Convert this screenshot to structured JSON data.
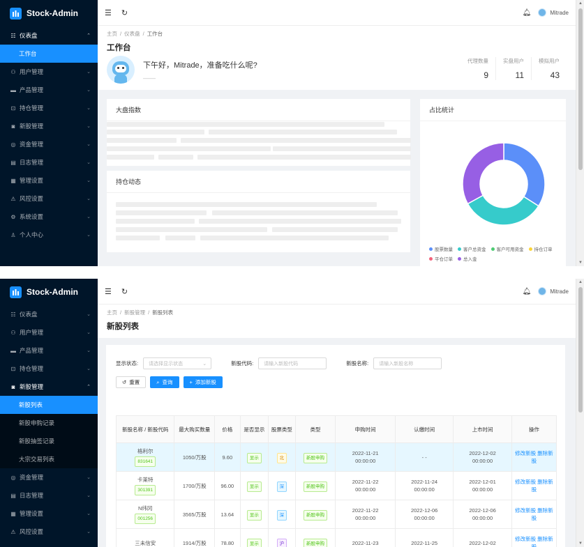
{
  "app": {
    "name": "Stock-Admin",
    "user": "Mitrade"
  },
  "shot1": {
    "menu": [
      {
        "icon": "☷",
        "label": "仪表盘",
        "open": true,
        "subs": [
          {
            "label": "工作台",
            "active": true
          }
        ]
      },
      {
        "icon": "⚇",
        "label": "用户管理"
      },
      {
        "icon": "▬",
        "label": "产品管理"
      },
      {
        "icon": "⊡",
        "label": "持仓管理"
      },
      {
        "icon": "◙",
        "label": "新股管理"
      },
      {
        "icon": "◎",
        "label": "资金管理"
      },
      {
        "icon": "▤",
        "label": "日志管理"
      },
      {
        "icon": "▦",
        "label": "管理设置"
      },
      {
        "icon": "⚠",
        "label": "风控设置"
      },
      {
        "icon": "⚙",
        "label": "系统设置"
      },
      {
        "icon": "♙",
        "label": "个人中心"
      }
    ],
    "breadcrumb": [
      "主页",
      "仪表盘",
      "工作台"
    ],
    "title": "工作台",
    "greeting": "下午好，Mitrade，准备吃什么呢?",
    "greeting_sub": "——",
    "stats": [
      {
        "label": "代理数量",
        "value": "9"
      },
      {
        "label": "实盘用户",
        "value": "11"
      },
      {
        "label": "模拟用户",
        "value": "43"
      }
    ],
    "card_market": "大盘指数",
    "card_position": "持仓动态",
    "card_ratio": "占比统计",
    "chart_data": {
      "type": "pie",
      "title": "",
      "categories": [
        "股票数量",
        "客户总资金",
        "客户可用资金",
        "持仓订单",
        "平仓订单",
        "总入金"
      ],
      "values": [
        34,
        33,
        0,
        0,
        0,
        33
      ],
      "colors": [
        "#5b8ff9",
        "#36cbcb",
        "#4ecb73",
        "#fbd437",
        "#f2637b",
        "#975fe4"
      ]
    }
  },
  "shot2": {
    "menu_before": [
      {
        "icon": "☷",
        "label": "仪表盘"
      },
      {
        "icon": "⚇",
        "label": "用户管理"
      },
      {
        "icon": "▬",
        "label": "产品管理"
      },
      {
        "icon": "⊡",
        "label": "持仓管理"
      }
    ],
    "menu_open": {
      "icon": "◙",
      "label": "新股管理"
    },
    "subs": [
      {
        "label": "新股列表",
        "active": true
      },
      {
        "label": "新股申购记录"
      },
      {
        "label": "新股抽签记录"
      },
      {
        "label": "大宗交易列表"
      }
    ],
    "menu_after": [
      {
        "icon": "◎",
        "label": "资金管理"
      },
      {
        "icon": "▤",
        "label": "日志管理"
      },
      {
        "icon": "▦",
        "label": "管理设置"
      },
      {
        "icon": "⚠",
        "label": "风控设置"
      }
    ],
    "breadcrumb": [
      "主页",
      "新股管理",
      "新股列表"
    ],
    "title": "新股列表",
    "filters": {
      "status_label": "显示状态:",
      "status_placeholder": "请选择显示状态",
      "code_label": "新股代码:",
      "code_placeholder": "请输入新股代码",
      "name_label": "新股名称:",
      "name_placeholder": "请输入新股名称"
    },
    "buttons": {
      "reset": "重置",
      "search": "查询",
      "add": "添加新股"
    },
    "columns": [
      "新股名称 / 新股代码",
      "最大购买数量",
      "价格",
      "是否显示",
      "股票类型",
      "类型",
      "申购时间",
      "认缴时间",
      "上市时间",
      "操作"
    ],
    "rows": [
      {
        "name": "格利尔",
        "code": "831641",
        "qty": "1050/万股",
        "price": "9.60",
        "show": "显示",
        "stype": "北",
        "stype_color": "gold",
        "type": "新股申购",
        "apply": [
          "2022-11-21",
          "00:00:00"
        ],
        "pay": [
          "- -",
          ""
        ],
        "list": [
          "2022-12-02",
          "00:00:00"
        ],
        "highlight": true
      },
      {
        "name": "卡莱特",
        "code": "301391",
        "qty": "1700/万股",
        "price": "96.00",
        "show": "显示",
        "stype": "深",
        "stype_color": "blue",
        "type": "新股申购",
        "apply": [
          "2022-11-22",
          "00:00:00"
        ],
        "pay": [
          "2022-11-24",
          "00:00:00"
        ],
        "list": [
          "2022-12-01",
          "00:00:00"
        ]
      },
      {
        "name": "N纬冈",
        "code": "001256",
        "qty": "3565/万股",
        "price": "13.64",
        "show": "显示",
        "stype": "深",
        "stype_color": "blue",
        "type": "新股申购",
        "apply": [
          "2022-11-22",
          "00:00:00"
        ],
        "pay": [
          "2022-12-06",
          "00:00:00"
        ],
        "list": [
          "2022-12-06",
          "00:00:00"
        ]
      },
      {
        "name": "三未信安",
        "code": "",
        "qty": "1914/万股",
        "price": "78.80",
        "show": "显示",
        "stype": "沪",
        "stype_color": "purple",
        "type": "新股申购",
        "apply": [
          "2022-11-23",
          ""
        ],
        "pay": [
          "2022-11-25",
          ""
        ],
        "list": [
          "2022-12-02",
          ""
        ]
      }
    ],
    "actions": {
      "edit": "修改新股",
      "del": "删除新股"
    }
  }
}
